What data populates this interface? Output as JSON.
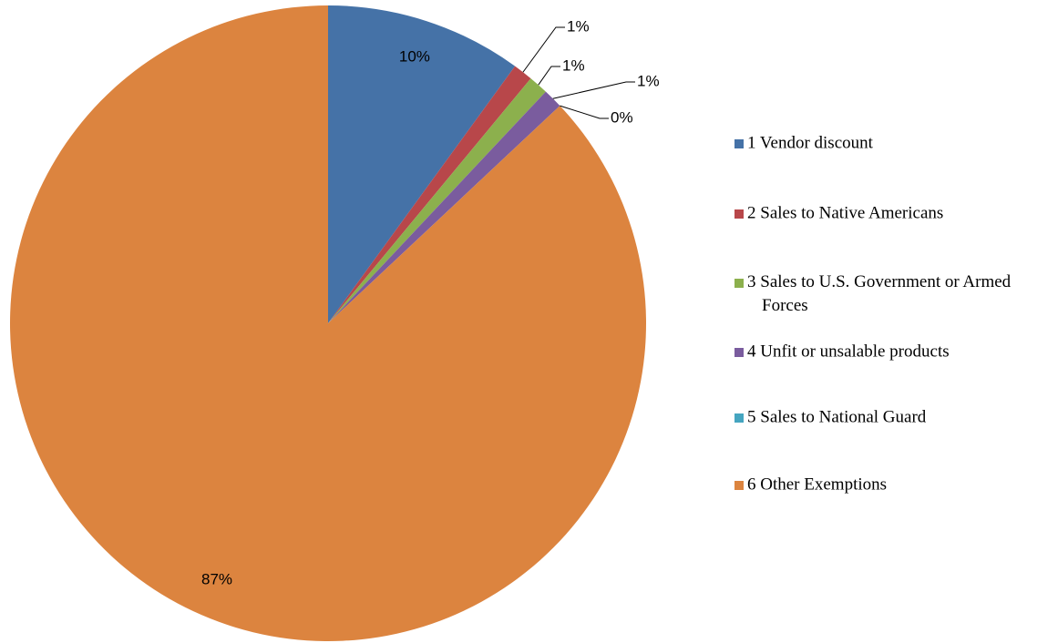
{
  "chart_data": {
    "type": "pie",
    "categories": [
      "1 Vendor discount",
      "2 Sales to Native Americans",
      "3 Sales to U.S. Government or Armed Forces",
      "4 Unfit or unsalable products",
      "5 Sales to National Guard",
      "6 Other Exemptions"
    ],
    "values": [
      10,
      1,
      1,
      1,
      0,
      87
    ],
    "value_labels": [
      "10%",
      "1%",
      "1%",
      "1%",
      "0%",
      "87%"
    ],
    "colors": [
      "#4572a7",
      "#b8474a",
      "#8cb04d",
      "#7a5c9e",
      "#45a5c0",
      "#dc843f"
    ],
    "legend": "right"
  }
}
